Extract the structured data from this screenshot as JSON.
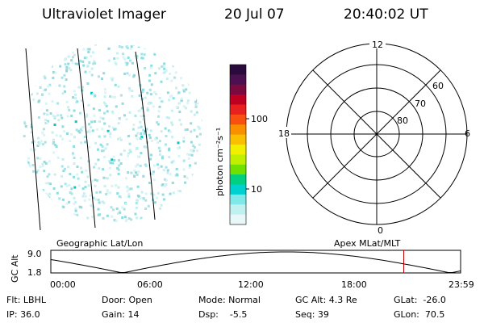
{
  "header": {
    "instrument": "Ultraviolet Imager",
    "date": "20 Jul 07",
    "time": "20:40:02 UT"
  },
  "colorbar": {
    "label": "photon cm⁻²s⁻¹",
    "ticks": [
      "100",
      "10"
    ],
    "colors": [
      "#2a0a3c",
      "#4a1050",
      "#7a0a40",
      "#c00020",
      "#e82020",
      "#f85010",
      "#f89000",
      "#f8c000",
      "#f0f000",
      "#c0f000",
      "#70e000",
      "#00d080",
      "#00d0d0",
      "#80e8e8",
      "#c0f0f0",
      "#e8f8f8"
    ]
  },
  "left_panel": {
    "frame_label": "Geographic Lat/Lon",
    "pixel_color": "#00c8c8"
  },
  "polar": {
    "frame_label": "Apex MLat/MLT",
    "mlt_labels": {
      "top": "12",
      "left": "18",
      "right": "6",
      "bottom": "0"
    },
    "lat_labels": [
      "60",
      "70",
      "80"
    ]
  },
  "altitude_plot": {
    "ylabel": "GC Alt",
    "y_ticks": [
      "9.0",
      "1.8"
    ],
    "x_ticks": [
      "00:00",
      "06:00",
      "12:00",
      "18:00",
      "23:59"
    ],
    "marker_color": "#c00000",
    "marker_time_hours": 20.67
  },
  "status": {
    "flt": "Flt: LBHL",
    "ip": "IP: 36.0",
    "door": "Door: Open",
    "gain": "Gain: 14",
    "mode": "Mode: Normal",
    "dsp": "Dsp:    -5.5",
    "gc_alt": "GC Alt: 4.3 Re",
    "seq": "Seq: 39",
    "glat": "GLat:  -26.0",
    "glon": "GLon:  70.5"
  }
}
